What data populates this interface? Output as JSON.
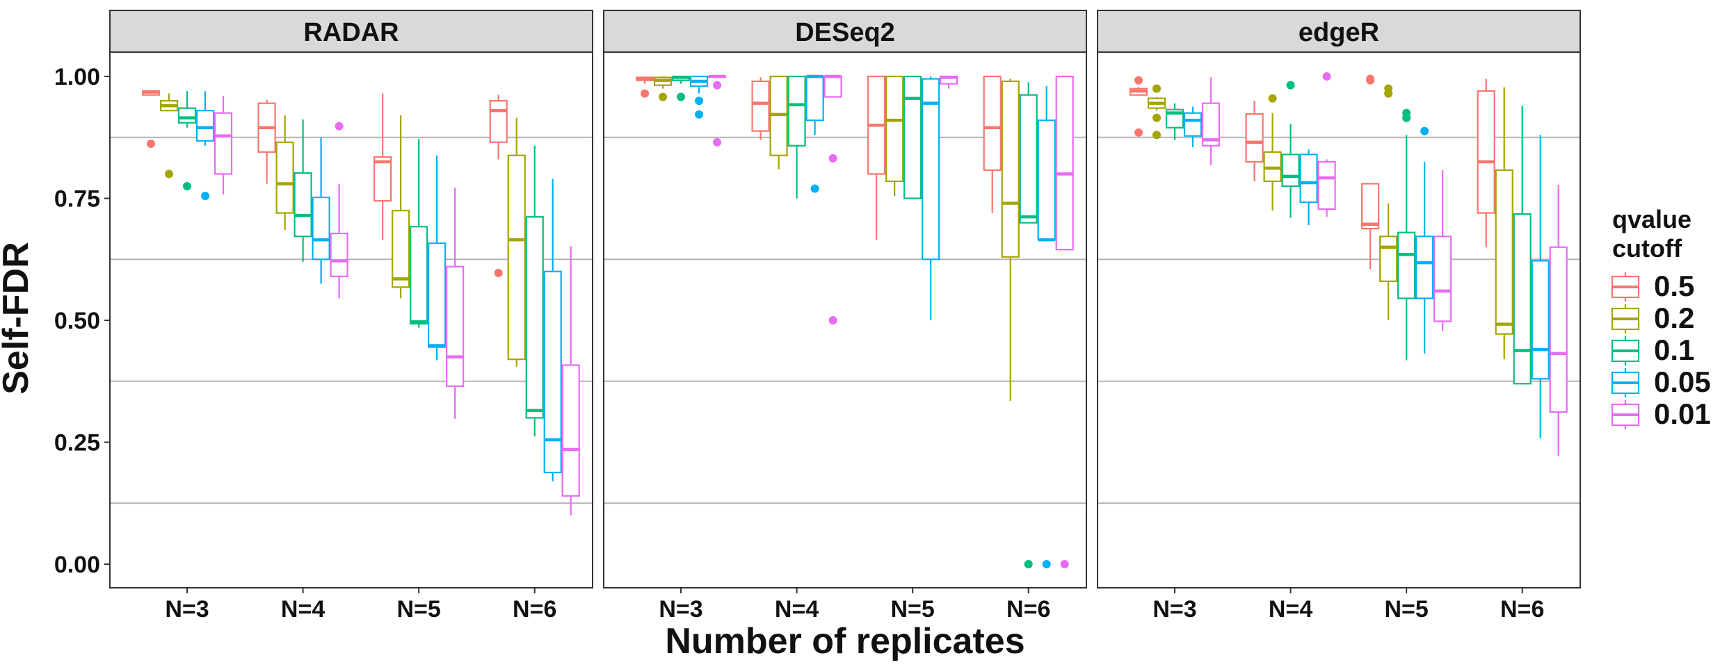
{
  "chart_data": {
    "type": "boxplot",
    "facet_variable": "method",
    "panels": [
      "RADAR",
      "DESeq2",
      "edgeR"
    ],
    "categories": [
      "N=3",
      "N=4",
      "N=5",
      "N=6"
    ],
    "xlabel": "Number of replicates",
    "ylabel": "Self-FDR",
    "ylim": [
      -0.05,
      1.05
    ],
    "yticks": [
      "0.00",
      "0.25",
      "0.50",
      "0.75",
      "1.00"
    ],
    "ytick_values": [
      0,
      0.25,
      0.5,
      0.75,
      1.0
    ],
    "grid": true,
    "legend": {
      "title": "qvalue\ncutoff",
      "title_lines": [
        "qvalue",
        "cutoff"
      ],
      "placement": "right",
      "entries": [
        "0.5",
        "0.2",
        "0.1",
        "0.05",
        "0.01"
      ]
    },
    "colors": {
      "0.5": "#F8766D",
      "0.2": "#A3A500",
      "0.1": "#00BF7D",
      "0.05": "#00B0F6",
      "0.01": "#E76BF3"
    },
    "series": [
      {
        "name": "0.5",
        "boxes": {
          "RADAR": [
            {
              "min": 0.962,
              "q1": 0.962,
              "median": 0.968,
              "q3": 0.97,
              "max": 0.972,
              "outliers": [
                0.862
              ]
            },
            {
              "min": 0.78,
              "q1": 0.845,
              "median": 0.895,
              "q3": 0.945,
              "max": 0.952,
              "outliers": []
            },
            {
              "min": 0.665,
              "q1": 0.745,
              "median": 0.825,
              "q3": 0.835,
              "max": 0.965,
              "outliers": []
            },
            {
              "min": 0.83,
              "q1": 0.865,
              "median": 0.93,
              "q3": 0.95,
              "max": 0.962,
              "outliers": [
                0.597
              ]
            }
          ],
          "DESeq2": [
            {
              "min": 0.985,
              "q1": 0.992,
              "median": 0.996,
              "q3": 0.998,
              "max": 1.0,
              "outliers": [
                0.965
              ]
            },
            {
              "min": 0.87,
              "q1": 0.888,
              "median": 0.945,
              "q3": 0.99,
              "max": 0.998,
              "outliers": []
            },
            {
              "min": 0.665,
              "q1": 0.8,
              "median": 0.9,
              "q3": 1.0,
              "max": 1.0,
              "outliers": []
            },
            {
              "min": 0.72,
              "q1": 0.808,
              "median": 0.895,
              "q3": 1.0,
              "max": 1.0,
              "outliers": []
            }
          ],
          "edgeR": [
            {
              "min": 0.96,
              "q1": 0.962,
              "median": 0.97,
              "q3": 0.975,
              "max": 0.978,
              "outliers": [
                0.992,
                0.885
              ]
            },
            {
              "min": 0.785,
              "q1": 0.825,
              "median": 0.865,
              "q3": 0.923,
              "max": 0.95,
              "outliers": []
            },
            {
              "min": 0.605,
              "q1": 0.688,
              "median": 0.697,
              "q3": 0.78,
              "max": 0.78,
              "outliers": [
                0.995,
                0.992
              ]
            },
            {
              "min": 0.65,
              "q1": 0.72,
              "median": 0.825,
              "q3": 0.97,
              "max": 0.995,
              "outliers": []
            }
          ]
        }
      },
      {
        "name": "0.2",
        "boxes": {
          "RADAR": [
            {
              "min": 0.93,
              "q1": 0.93,
              "median": 0.94,
              "q3": 0.95,
              "max": 0.965,
              "outliers": [
                0.8
              ]
            },
            {
              "min": 0.685,
              "q1": 0.72,
              "median": 0.78,
              "q3": 0.865,
              "max": 0.92,
              "outliers": []
            },
            {
              "min": 0.545,
              "q1": 0.568,
              "median": 0.585,
              "q3": 0.725,
              "max": 0.92,
              "outliers": []
            },
            {
              "min": 0.405,
              "q1": 0.42,
              "median": 0.665,
              "q3": 0.838,
              "max": 0.915,
              "outliers": []
            }
          ],
          "DESeq2": [
            {
              "min": 0.975,
              "q1": 0.982,
              "median": 0.992,
              "q3": 0.998,
              "max": 1.0,
              "outliers": [
                0.958
              ]
            },
            {
              "min": 0.81,
              "q1": 0.838,
              "median": 0.922,
              "q3": 1.0,
              "max": 1.0,
              "outliers": []
            },
            {
              "min": 0.755,
              "q1": 0.785,
              "median": 0.91,
              "q3": 1.0,
              "max": 1.0,
              "outliers": []
            },
            {
              "min": 0.335,
              "q1": 0.63,
              "median": 0.74,
              "q3": 0.99,
              "max": 0.995,
              "outliers": []
            }
          ],
          "edgeR": [
            {
              "min": 0.93,
              "q1": 0.935,
              "median": 0.945,
              "q3": 0.955,
              "max": 0.958,
              "outliers": [
                0.975,
                0.915,
                0.88
              ]
            },
            {
              "min": 0.725,
              "q1": 0.785,
              "median": 0.812,
              "q3": 0.845,
              "max": 0.925,
              "outliers": [
                0.955
              ]
            },
            {
              "min": 0.5,
              "q1": 0.58,
              "median": 0.65,
              "q3": 0.672,
              "max": 0.74,
              "outliers": [
                0.975,
                0.965
              ]
            },
            {
              "min": 0.42,
              "q1": 0.472,
              "median": 0.492,
              "q3": 0.808,
              "max": 0.978,
              "outliers": []
            }
          ]
        }
      },
      {
        "name": "0.1",
        "boxes": {
          "RADAR": [
            {
              "min": 0.895,
              "q1": 0.905,
              "median": 0.915,
              "q3": 0.935,
              "max": 0.97,
              "outliers": [
                0.775
              ]
            },
            {
              "min": 0.62,
              "q1": 0.672,
              "median": 0.715,
              "q3": 0.802,
              "max": 0.912,
              "outliers": []
            },
            {
              "min": 0.485,
              "q1": 0.493,
              "median": 0.497,
              "q3": 0.692,
              "max": 0.872,
              "outliers": []
            },
            {
              "min": 0.262,
              "q1": 0.3,
              "median": 0.315,
              "q3": 0.712,
              "max": 0.858,
              "outliers": []
            }
          ],
          "DESeq2": [
            {
              "min": 0.985,
              "q1": 0.992,
              "median": 0.998,
              "q3": 1.0,
              "max": 1.0,
              "outliers": [
                0.958
              ]
            },
            {
              "min": 0.75,
              "q1": 0.858,
              "median": 0.942,
              "q3": 1.0,
              "max": 1.0,
              "outliers": []
            },
            {
              "min": 0.75,
              "q1": 0.75,
              "median": 0.955,
              "q3": 1.0,
              "max": 1.0,
              "outliers": []
            },
            {
              "min": 0.7,
              "q1": 0.7,
              "median": 0.712,
              "q3": 0.962,
              "max": 0.988,
              "outliers": [
                0.0
              ]
            }
          ],
          "edgeR": [
            {
              "min": 0.87,
              "q1": 0.895,
              "median": 0.925,
              "q3": 0.932,
              "max": 0.945,
              "outliers": []
            },
            {
              "min": 0.71,
              "q1": 0.775,
              "median": 0.795,
              "q3": 0.84,
              "max": 0.902,
              "outliers": [
                0.982
              ]
            },
            {
              "min": 0.418,
              "q1": 0.545,
              "median": 0.635,
              "q3": 0.68,
              "max": 0.88,
              "outliers": [
                0.925,
                0.915
              ]
            },
            {
              "min": 0.37,
              "q1": 0.37,
              "median": 0.438,
              "q3": 0.718,
              "max": 0.94,
              "outliers": []
            }
          ]
        }
      },
      {
        "name": "0.05",
        "boxes": {
          "RADAR": [
            {
              "min": 0.858,
              "q1": 0.868,
              "median": 0.895,
              "q3": 0.93,
              "max": 0.97,
              "outliers": [
                0.755
              ]
            },
            {
              "min": 0.575,
              "q1": 0.625,
              "median": 0.665,
              "q3": 0.752,
              "max": 0.875,
              "outliers": []
            },
            {
              "min": 0.418,
              "q1": 0.445,
              "median": 0.448,
              "q3": 0.658,
              "max": 0.838,
              "outliers": []
            },
            {
              "min": 0.17,
              "q1": 0.188,
              "median": 0.255,
              "q3": 0.6,
              "max": 0.79,
              "outliers": []
            }
          ],
          "DESeq2": [
            {
              "min": 0.965,
              "q1": 0.98,
              "median": 0.99,
              "q3": 1.0,
              "max": 1.0,
              "outliers": [
                0.95,
                0.922
              ]
            },
            {
              "min": 0.88,
              "q1": 0.91,
              "median": 1.0,
              "q3": 1.0,
              "max": 1.0,
              "outliers": [
                0.77
              ]
            },
            {
              "min": 0.5,
              "q1": 0.625,
              "median": 0.945,
              "q3": 0.995,
              "max": 1.0,
              "outliers": []
            },
            {
              "min": 0.665,
              "q1": 0.665,
              "median": 0.665,
              "q3": 0.91,
              "max": 0.98,
              "outliers": [
                0.0
              ]
            }
          ],
          "edgeR": [
            {
              "min": 0.855,
              "q1": 0.878,
              "median": 0.91,
              "q3": 0.925,
              "max": 0.938,
              "outliers": []
            },
            {
              "min": 0.695,
              "q1": 0.742,
              "median": 0.782,
              "q3": 0.84,
              "max": 0.85,
              "outliers": []
            },
            {
              "min": 0.432,
              "q1": 0.545,
              "median": 0.618,
              "q3": 0.672,
              "max": 0.825,
              "outliers": [
                0.888
              ]
            },
            {
              "min": 0.258,
              "q1": 0.38,
              "median": 0.44,
              "q3": 0.622,
              "max": 0.88,
              "outliers": []
            }
          ]
        }
      },
      {
        "name": "0.01",
        "boxes": {
          "RADAR": [
            {
              "min": 0.758,
              "q1": 0.8,
              "median": 0.878,
              "q3": 0.925,
              "max": 0.96,
              "outliers": []
            },
            {
              "min": 0.545,
              "q1": 0.59,
              "median": 0.622,
              "q3": 0.678,
              "max": 0.78,
              "outliers": [
                0.898
              ]
            },
            {
              "min": 0.298,
              "q1": 0.365,
              "median": 0.425,
              "q3": 0.61,
              "max": 0.772,
              "outliers": []
            },
            {
              "min": 0.1,
              "q1": 0.14,
              "median": 0.235,
              "q3": 0.408,
              "max": 0.652,
              "outliers": []
            }
          ],
          "DESeq2": [
            {
              "min": 1.0,
              "q1": 1.0,
              "median": 1.0,
              "q3": 1.0,
              "max": 1.0,
              "outliers": [
                0.982,
                0.865
              ]
            },
            {
              "min": 0.958,
              "q1": 0.958,
              "median": 1.0,
              "q3": 1.0,
              "max": 1.0,
              "outliers": [
                0.832,
                0.5
              ]
            },
            {
              "min": 0.975,
              "q1": 0.985,
              "median": 0.998,
              "q3": 1.0,
              "max": 1.0,
              "outliers": []
            },
            {
              "min": 0.645,
              "q1": 0.645,
              "median": 0.8,
              "q3": 1.0,
              "max": 1.0,
              "outliers": [
                0.0
              ]
            }
          ],
          "edgeR": [
            {
              "min": 0.818,
              "q1": 0.858,
              "median": 0.87,
              "q3": 0.945,
              "max": 0.998,
              "outliers": []
            },
            {
              "min": 0.712,
              "q1": 0.728,
              "median": 0.792,
              "q3": 0.825,
              "max": 0.83,
              "outliers": [
                1.0
              ]
            },
            {
              "min": 0.478,
              "q1": 0.498,
              "median": 0.56,
              "q3": 0.672,
              "max": 0.808,
              "outliers": []
            },
            {
              "min": 0.222,
              "q1": 0.312,
              "median": 0.432,
              "q3": 0.65,
              "max": 0.778,
              "outliers": []
            }
          ]
        }
      }
    ]
  }
}
